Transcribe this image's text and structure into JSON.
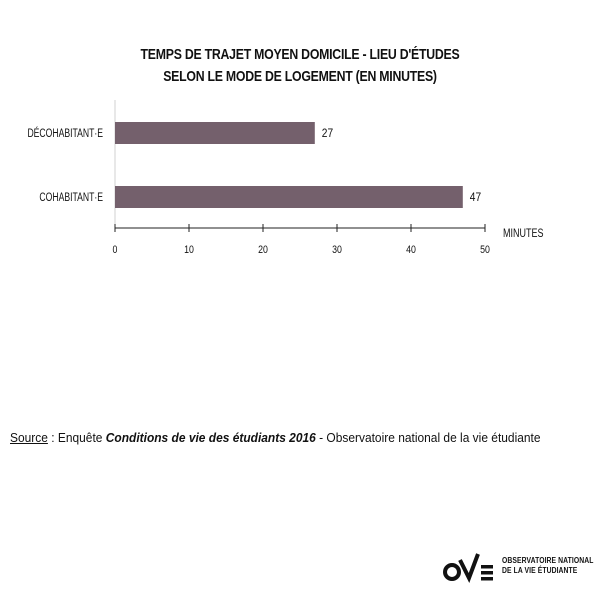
{
  "chart_data": {
    "type": "bar",
    "orientation": "horizontal",
    "title_line1": "TEMPS DE TRAJET MOYEN DOMICILE - LIEU D'ÉTUDES",
    "title_line2": "SELON LE MODE DE LOGEMENT (EN MINUTES)",
    "categories": [
      "DÉCOHABITANT·E",
      "COHABITANT·E"
    ],
    "values": [
      27,
      47
    ],
    "xlabel": "MINUTES",
    "xlim": [
      0,
      50
    ],
    "xticks": [
      0,
      10,
      20,
      30,
      40,
      50
    ],
    "bar_color": "#74606c",
    "grid": false
  },
  "source": {
    "label": "Source",
    "prefix": " : Enquête ",
    "survey": "Conditions de vie des étudiants 2016",
    "suffix": " - Observatoire national de la vie étudiante"
  },
  "logo": {
    "line1": "OBSERVATOIRE NATIONAL",
    "line2": "DE LA VIE ÉTUDIANTE",
    "icon": "ove-logo-icon"
  }
}
